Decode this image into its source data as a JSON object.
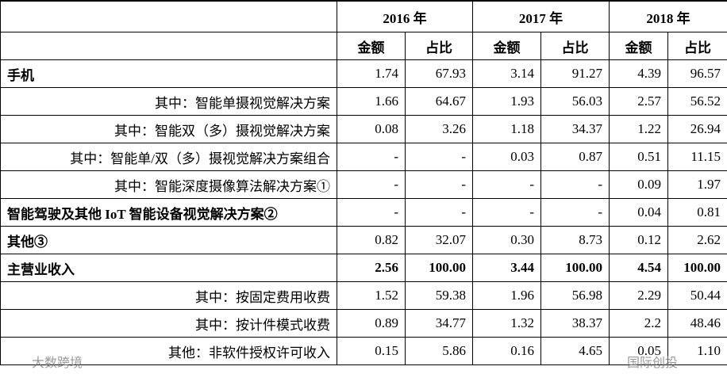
{
  "table": {
    "years": [
      "2016 年",
      "2017 年",
      "2018 年"
    ],
    "subheaders": [
      "金额",
      "占比",
      "金额",
      "占比",
      "金额",
      "占比"
    ],
    "rows": [
      [
        "手机",
        "1.74",
        "67.93",
        "3.14",
        "91.27",
        "4.39",
        "96.57"
      ],
      [
        "其中：智能单摄视觉解决方案",
        "1.66",
        "64.67",
        "1.93",
        "56.03",
        "2.57",
        "56.52"
      ],
      [
        "其中：智能双（多）摄视觉解决方案",
        "0.08",
        "3.26",
        "1.18",
        "34.37",
        "1.22",
        "26.94"
      ],
      [
        "其中：智能单/双（多）摄视觉解决方案组合",
        "-",
        "-",
        "0.03",
        "0.87",
        "0.51",
        "11.15"
      ],
      [
        "其中：智能深度摄像算法解决方案①",
        "-",
        "-",
        "-",
        "-",
        "0.09",
        "1.97"
      ],
      [
        "智能驾驶及其他 IoT 智能设备视觉解决方案②",
        "-",
        "-",
        "-",
        "-",
        "0.04",
        "0.81"
      ],
      [
        "其他③",
        "0.82",
        "32.07",
        "0.30",
        "8.73",
        "0.12",
        "2.62"
      ],
      [
        "主营业收入",
        "2.56",
        "100.00",
        "3.44",
        "100.00",
        "4.54",
        "100.00"
      ],
      [
        "其中：按固定费用收费",
        "1.52",
        "59.38",
        "1.96",
        "56.98",
        "2.29",
        "50.44"
      ],
      [
        "其中：按计件模式收费",
        "0.89",
        "34.77",
        "1.32",
        "38.37",
        "2.2",
        "48.46"
      ],
      [
        "其他：非软件授权许可收入",
        "0.15",
        "5.86",
        "0.16",
        "4.65",
        "0.05",
        "1.10"
      ]
    ]
  },
  "watermarks": [
    "大数跨境",
    "国际创投"
  ]
}
